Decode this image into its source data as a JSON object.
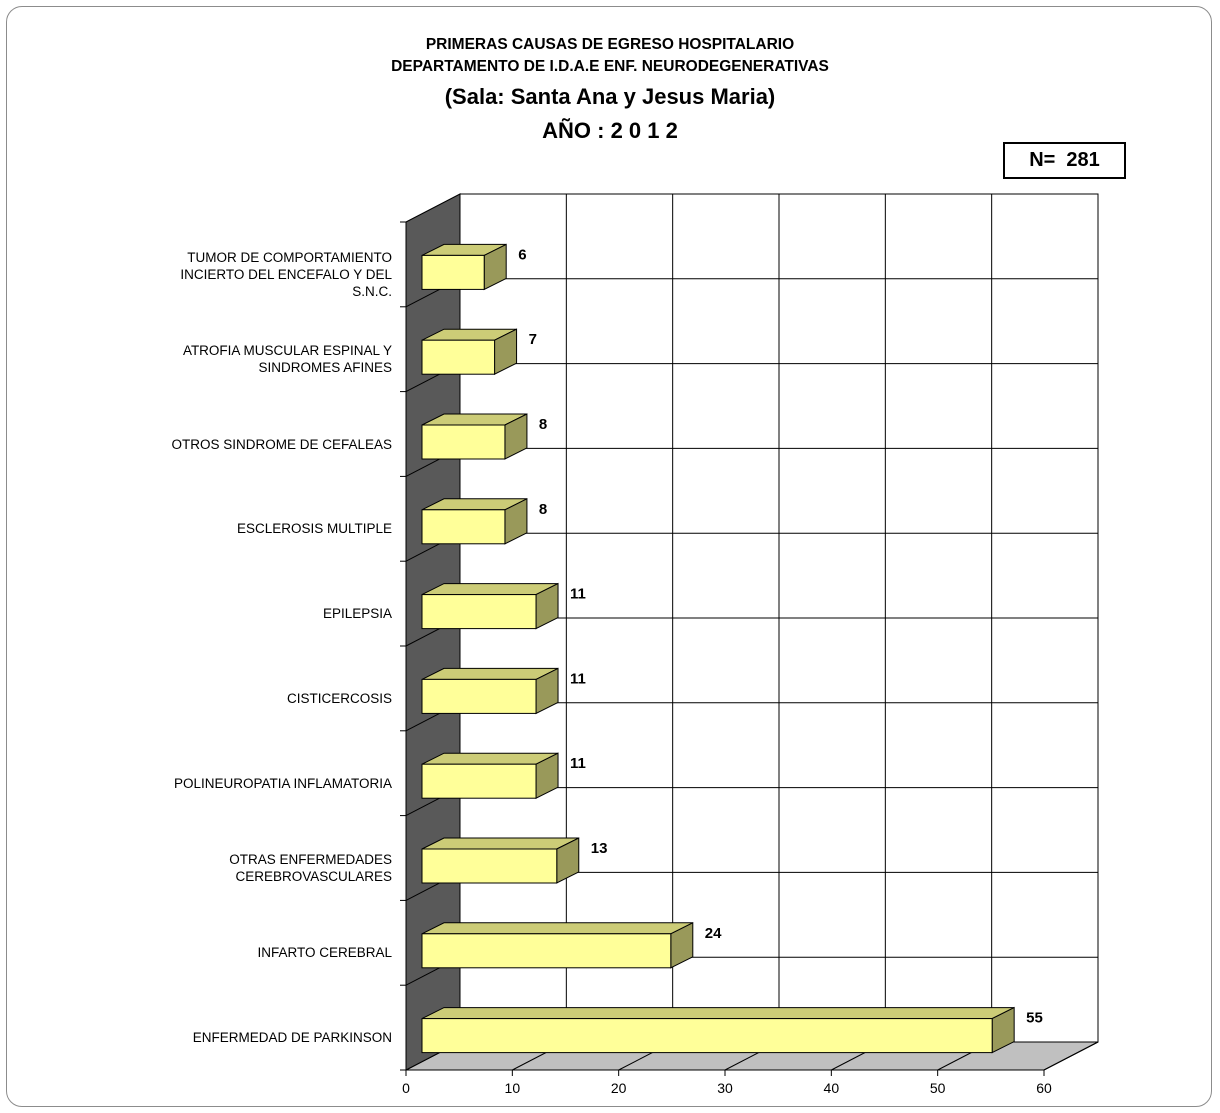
{
  "title_lines": [
    "PRIMERAS CAUSAS DE EGRESO HOSPITALARIO",
    "DEPARTAMENTO DE I.D.A.E ENF. NEURODEGENERATIVAS",
    "(Sala: Santa Ana y Jesus Maria)",
    "AÑO : 2 0 1 2"
  ],
  "n_label": "N=  281",
  "colors": {
    "bar_front": "#ffff99",
    "bar_top": "#cccc77",
    "bar_side": "#99995a",
    "back_wall": "#ffffff",
    "side_wall": "#595959",
    "floor": "#c0c0c0",
    "grid": "#000000"
  },
  "chart_data": {
    "type": "bar",
    "orientation": "horizontal",
    "style": "3d",
    "categories": [
      "TUMOR DE COMPORTAMIENTO INCIERTO DEL ENCEFALO Y DEL S.N.C.",
      "ATROFIA MUSCULAR ESPINAL Y SINDROMES AFINES",
      "OTROS SINDROME DE CEFALEAS",
      "ESCLEROSIS MULTIPLE",
      "EPILEPSIA",
      "CISTICERCOSIS",
      "POLINEUROPATIA INFLAMATORIA",
      "OTRAS ENFERMEDADES CEREBROVASCULARES",
      "INFARTO CEREBRAL",
      "ENFERMEDAD DE PARKINSON"
    ],
    "category_lines": [
      [
        "TUMOR DE COMPORTAMIENTO",
        "INCIERTO DEL ENCEFALO Y DEL",
        "S.N.C."
      ],
      [
        "ATROFIA MUSCULAR ESPINAL Y",
        "SINDROMES AFINES"
      ],
      [
        "OTROS SINDROME DE CEFALEAS"
      ],
      [
        "ESCLEROSIS MULTIPLE"
      ],
      [
        "EPILEPSIA"
      ],
      [
        "CISTICERCOSIS"
      ],
      [
        "POLINEUROPATIA INFLAMATORIA"
      ],
      [
        "OTRAS ENFERMEDADES",
        "CEREBROVASCULARES"
      ],
      [
        "INFARTO CEREBRAL"
      ],
      [
        "ENFERMEDAD DE PARKINSON"
      ]
    ],
    "values": [
      6,
      7,
      8,
      8,
      11,
      11,
      11,
      13,
      24,
      55
    ],
    "xticks": [
      "0",
      "10",
      "20",
      "30",
      "40",
      "50",
      "60"
    ],
    "xlim": [
      0,
      60
    ],
    "grid": true,
    "data_labels": true
  }
}
